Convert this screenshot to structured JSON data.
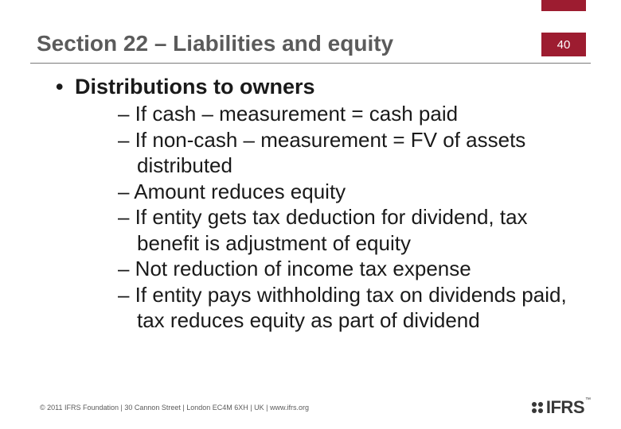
{
  "slide": {
    "title": "Section 22 – Liabilities and equity",
    "page_number": "40",
    "accent_color": "#9d1c30",
    "title_color": "#5b5b5b",
    "text_color": "#1a1a1a",
    "background_color": "#ffffff",
    "title_fontsize": 28,
    "body_fontsize": 26,
    "main_bullet": "Distributions to owners",
    "sub_bullets": [
      "– If cash – measurement = cash paid",
      "– If non-cash – measurement = FV of assets distributed",
      "– Amount reduces equity",
      "– If entity gets tax deduction for dividend, tax benefit is adjustment of equity",
      "– Not reduction of income tax expense",
      "– If entity pays withholding tax on dividends paid, tax reduces equity as part of dividend"
    ],
    "footer": "© 2011 IFRS Foundation  |  30 Cannon Street  |  London EC4M 6XH  |  UK  |  www.ifrs.org",
    "logo_text": "IFRS",
    "logo_tm": "™"
  }
}
